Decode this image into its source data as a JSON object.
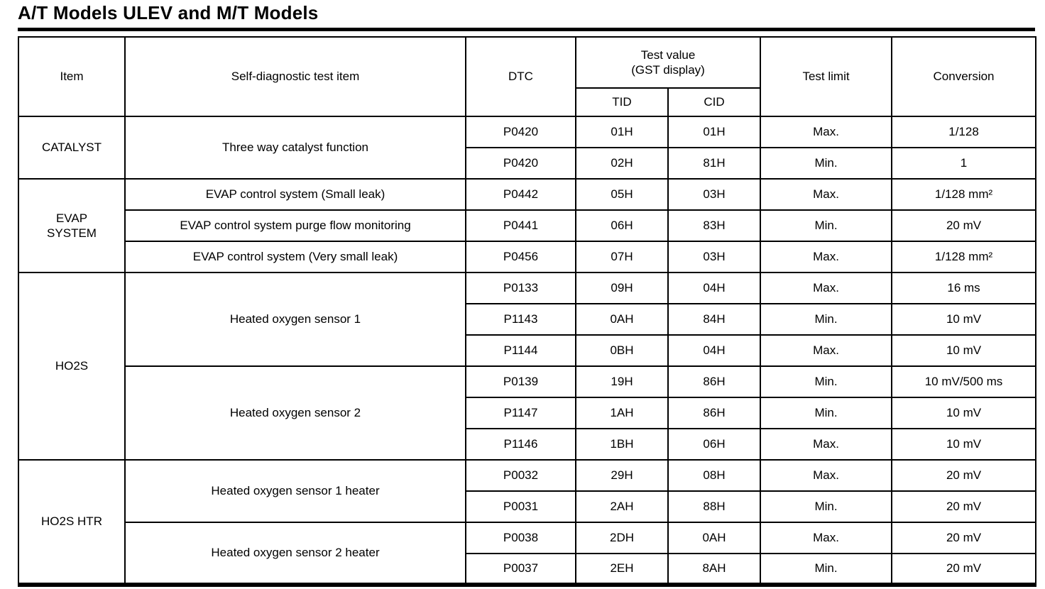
{
  "title": "A/T Models ULEV and M/T Models",
  "header": {
    "item": "Item",
    "test_item": "Self-diagnostic test item",
    "dtc": "DTC",
    "test_value": "Test value",
    "gst_display": "(GST display)",
    "tid": "TID",
    "cid": "CID",
    "test_limit": "Test limit",
    "conversion": "Conversion"
  },
  "rows": [
    {
      "item": "CATALYST",
      "test": "Three way catalyst function",
      "dtc": "P0420",
      "tid": "01H",
      "cid": "01H",
      "limit": "Max.",
      "conv": "1/128"
    },
    {
      "dtc": "P0420",
      "tid": "02H",
      "cid": "81H",
      "limit": "Min.",
      "conv": "1"
    },
    {
      "item": "EVAP\nSYSTEM",
      "test": "EVAP control system (Small leak)",
      "dtc": "P0442",
      "tid": "05H",
      "cid": "03H",
      "limit": "Max.",
      "conv": "1/128 mm²"
    },
    {
      "test": "EVAP control system purge flow monitoring",
      "dtc": "P0441",
      "tid": "06H",
      "cid": "83H",
      "limit": "Min.",
      "conv": "20 mV"
    },
    {
      "test": "EVAP control system (Very small leak)",
      "dtc": "P0456",
      "tid": "07H",
      "cid": "03H",
      "limit": "Max.",
      "conv": "1/128 mm²"
    },
    {
      "item": "HO2S",
      "test": "Heated oxygen sensor 1",
      "dtc": "P0133",
      "tid": "09H",
      "cid": "04H",
      "limit": "Max.",
      "conv": "16 ms"
    },
    {
      "dtc": "P1143",
      "tid": "0AH",
      "cid": "84H",
      "limit": "Min.",
      "conv": "10 mV"
    },
    {
      "dtc": "P1144",
      "tid": "0BH",
      "cid": "04H",
      "limit": "Max.",
      "conv": "10 mV"
    },
    {
      "test": "Heated oxygen sensor 2",
      "dtc": "P0139",
      "tid": "19H",
      "cid": "86H",
      "limit": "Min.",
      "conv": "10 mV/500 ms"
    },
    {
      "dtc": "P1147",
      "tid": "1AH",
      "cid": "86H",
      "limit": "Min.",
      "conv": "10 mV"
    },
    {
      "dtc": "P1146",
      "tid": "1BH",
      "cid": "06H",
      "limit": "Max.",
      "conv": "10 mV"
    },
    {
      "item": "HO2S HTR",
      "test": "Heated oxygen sensor 1 heater",
      "dtc": "P0032",
      "tid": "29H",
      "cid": "08H",
      "limit": "Max.",
      "conv": "20 mV"
    },
    {
      "dtc": "P0031",
      "tid": "2AH",
      "cid": "88H",
      "limit": "Min.",
      "conv": "20 mV"
    },
    {
      "test": "Heated oxygen sensor 2 heater",
      "dtc": "P0038",
      "tid": "2DH",
      "cid": "0AH",
      "limit": "Max.",
      "conv": "20 mV"
    },
    {
      "dtc": "P0037",
      "tid": "2EH",
      "cid": "8AH",
      "limit": "Min.",
      "conv": "20 mV"
    }
  ]
}
